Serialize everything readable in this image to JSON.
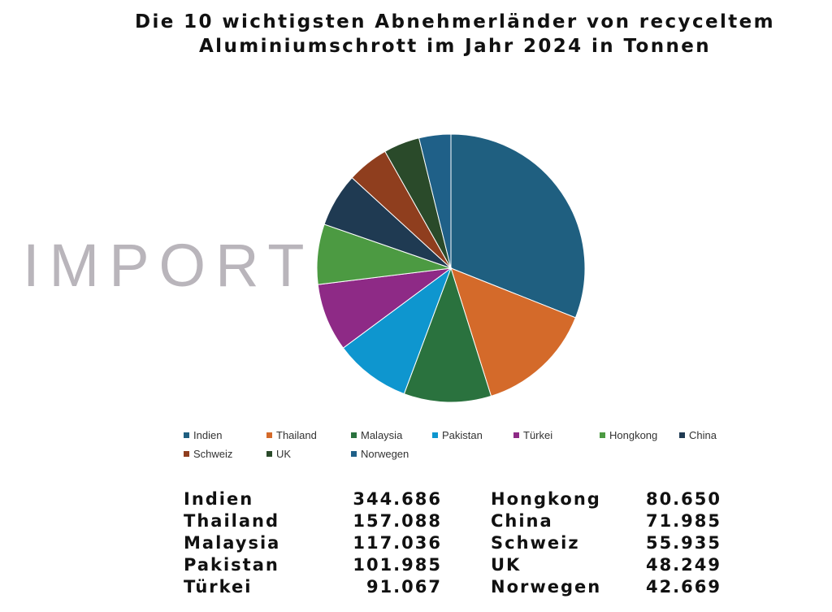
{
  "title_line1": "Die 10 wichtigsten Abnehmerländer von recyceltem",
  "title_line2": "Aluminiumschrott im Jahr 2024 in Tonnen",
  "side_label": "IMPORT",
  "chart_data": {
    "type": "pie",
    "title": "Die 10 wichtigsten Abnehmerländer von recyceltem Aluminiumschrott im Jahr 2024 in Tonnen",
    "legend_position": "bottom",
    "categories": [
      "Indien",
      "Thailand",
      "Malaysia",
      "Pakistan",
      "Türkei",
      "Hongkong",
      "China",
      "Schweiz",
      "UK",
      "Norwegen"
    ],
    "values": [
      344686,
      157088,
      117036,
      101985,
      91067,
      80650,
      71985,
      55935,
      48249,
      42669
    ],
    "colors": [
      "#1f5f80",
      "#d46a2a",
      "#2a723e",
      "#0e96cf",
      "#8e2a86",
      "#4c9a42",
      "#1f3a52",
      "#8f3e1e",
      "#2a4a2a",
      "#1f6088"
    ]
  },
  "table": {
    "left": [
      {
        "name": "Indien",
        "value": "344.686"
      },
      {
        "name": "Thailand",
        "value": "157.088"
      },
      {
        "name": "Malaysia",
        "value": "117.036"
      },
      {
        "name": "Pakistan",
        "value": "101.985"
      },
      {
        "name": "Türkei",
        "value": "91.067"
      }
    ],
    "right": [
      {
        "name": "Hongkong",
        "value": "80.650"
      },
      {
        "name": "China",
        "value": "71.985"
      },
      {
        "name": "Schweiz",
        "value": "55.935"
      },
      {
        "name": "UK",
        "value": "48.249"
      },
      {
        "name": "Norwegen",
        "value": "42.669"
      }
    ]
  }
}
